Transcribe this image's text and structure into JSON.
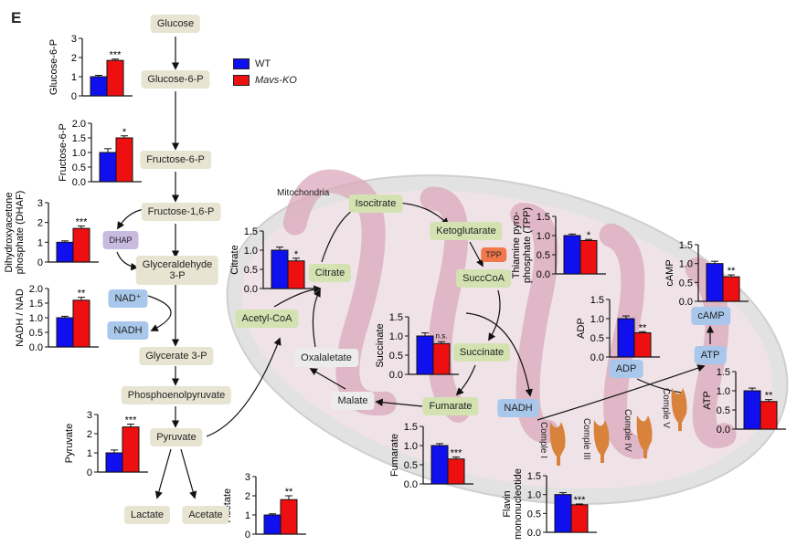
{
  "panel_label": "E",
  "legend": [
    {
      "label": "WT",
      "color": "#1010ee"
    },
    {
      "label": "Mavs-KO",
      "color": "#ee1010"
    }
  ],
  "colors": {
    "wt": "#1010ee",
    "ko": "#ee1010"
  },
  "nodes": {
    "glucose": "Glucose",
    "glucose6p": "Glucose-6-P",
    "fructose6p": "Fructose-6-P",
    "fructose16p": "Fructose-1,6-P",
    "dhap": "DHAP",
    "g3p_1": "Glyceraldehyde",
    "g3p_2": "3-P",
    "nad": "NAD⁺",
    "nadh": "NADH",
    "glycerate": "Glycerate 3-P",
    "pep": "Phosphoenolpyruvate",
    "pyruvate": "Pyruvate",
    "lactate": "Lactate",
    "acetate": "Acetate",
    "mitochondria": "Mitochondria",
    "acetylcoa": "Acetyl-CoA",
    "citrate": "Citrate",
    "isocitrate": "Isocitrate",
    "ketoglutarate": "Ketoglutarate",
    "tpp": "TPP",
    "succcoa": "SuccCoA",
    "succinate": "Succinate",
    "fumarate": "Fumarate",
    "malate": "Malate",
    "oxalaletate": "Oxalaletate",
    "mito_nadh": "NADH",
    "adp": "ADP",
    "atp": "ATP",
    "camp": "cAMP",
    "complex1": "Comple I",
    "complex3": "Comple III",
    "complex4": "Comple IV",
    "complex5": "Comple V"
  },
  "chart_data": [
    {
      "type": "bar",
      "ylabel": [
        "Glucose-6-P"
      ],
      "categories": [
        "WT",
        "Mavs-KO"
      ],
      "values": [
        1.0,
        1.85
      ],
      "errors": [
        0.07,
        0.07
      ],
      "ylim": [
        0,
        3
      ],
      "ticks": [
        "0",
        "1",
        "2",
        "3"
      ],
      "sig": "***"
    },
    {
      "type": "bar",
      "ylabel": [
        "Fructose-6-P"
      ],
      "categories": [
        "WT",
        "Mavs-KO"
      ],
      "values": [
        1.0,
        1.5
      ],
      "errors": [
        0.13,
        0.07
      ],
      "ylim": [
        0,
        2
      ],
      "ticks": [
        "0.0",
        "0.5",
        "1.0",
        "1.5",
        "2.0"
      ],
      "sig": "*"
    },
    {
      "type": "bar",
      "ylabel": [
        "Dihydroxyacetone",
        "phosphate (DHAF)"
      ],
      "categories": [
        "WT",
        "Mavs-KO"
      ],
      "values": [
        1.0,
        1.7
      ],
      "errors": [
        0.07,
        0.12
      ],
      "ylim": [
        0,
        3
      ],
      "ticks": [
        "0",
        "1",
        "2",
        "3"
      ],
      "sig": "***"
    },
    {
      "type": "bar",
      "ylabel": [
        "NADH / NAD"
      ],
      "categories": [
        "WT",
        "Mavs-KO"
      ],
      "values": [
        1.0,
        1.6
      ],
      "errors": [
        0.05,
        0.1
      ],
      "ylim": [
        0,
        2
      ],
      "ticks": [
        "0.0",
        "0.5",
        "1.0",
        "1.5",
        "2.0"
      ],
      "sig": "**"
    },
    {
      "type": "bar",
      "ylabel": [
        "Pyruvate"
      ],
      "categories": [
        "WT",
        "Mavs-KO"
      ],
      "values": [
        1.0,
        2.35
      ],
      "errors": [
        0.15,
        0.15
      ],
      "ylim": [
        0,
        3
      ],
      "ticks": [
        "0",
        "1",
        "2",
        "3"
      ],
      "sig": "***"
    },
    {
      "type": "bar",
      "ylabel": [
        "Acetate"
      ],
      "categories": [
        "WT",
        "Mavs-KO"
      ],
      "values": [
        1.0,
        1.8
      ],
      "errors": [
        0.06,
        0.2
      ],
      "ylim": [
        0,
        3
      ],
      "ticks": [
        "0",
        "1",
        "2",
        "3"
      ],
      "sig": "**"
    },
    {
      "type": "bar",
      "ylabel": [
        "Citrate"
      ],
      "categories": [
        "WT",
        "Mavs-KO"
      ],
      "values": [
        1.0,
        0.72
      ],
      "errors": [
        0.08,
        0.07
      ],
      "ylim": [
        0,
        1.5
      ],
      "ticks": [
        "0.0",
        "0.5",
        "1.0",
        "1.5"
      ],
      "sig": "*"
    },
    {
      "type": "bar",
      "ylabel": [
        "Succinate"
      ],
      "categories": [
        "WT",
        "Mavs-KO"
      ],
      "values": [
        1.0,
        0.8
      ],
      "errors": [
        0.08,
        0.05
      ],
      "ylim": [
        0,
        1.5
      ],
      "ticks": [
        "0.0",
        "0.5",
        "1.0",
        "1.5"
      ],
      "sig": "n.s."
    },
    {
      "type": "bar",
      "ylabel": [
        "Thiamine pyro-",
        "phosphate (TPP)"
      ],
      "categories": [
        "WT",
        "Mavs-KO"
      ],
      "values": [
        1.0,
        0.87
      ],
      "errors": [
        0.04,
        0.03
      ],
      "ylim": [
        0,
        1.5
      ],
      "ticks": [
        "0.0",
        "0.5",
        "1.0",
        "1.5"
      ],
      "sig": "*"
    },
    {
      "type": "bar",
      "ylabel": [
        "cAMP"
      ],
      "categories": [
        "WT",
        "Mavs-KO"
      ],
      "values": [
        1.0,
        0.65
      ],
      "errors": [
        0.06,
        0.05
      ],
      "ylim": [
        0,
        1.5
      ],
      "ticks": [
        "0.0",
        "0.5",
        "1.0",
        "1.5"
      ],
      "sig": "**"
    },
    {
      "type": "bar",
      "ylabel": [
        "ADP"
      ],
      "categories": [
        "WT",
        "Mavs-KO"
      ],
      "values": [
        1.0,
        0.63
      ],
      "errors": [
        0.07,
        0.03
      ],
      "ylim": [
        0,
        1.5
      ],
      "ticks": [
        "0.0",
        "0.5",
        "1.0",
        "1.5"
      ],
      "sig": "**"
    },
    {
      "type": "bar",
      "ylabel": [
        "ATP"
      ],
      "categories": [
        "WT",
        "Mavs-KO"
      ],
      "values": [
        1.0,
        0.72
      ],
      "errors": [
        0.07,
        0.05
      ],
      "ylim": [
        0,
        1.5
      ],
      "ticks": [
        "0.0",
        "0.5",
        "1.0",
        "1.5"
      ],
      "sig": "**"
    },
    {
      "type": "bar",
      "ylabel": [
        "Fumarate"
      ],
      "categories": [
        "WT",
        "Mavs-KO"
      ],
      "values": [
        1.0,
        0.65
      ],
      "errors": [
        0.05,
        0.05
      ],
      "ylim": [
        0,
        1.5
      ],
      "ticks": [
        "0.0",
        "0.5",
        "1.0",
        "1.5"
      ],
      "sig": "***"
    },
    {
      "type": "bar",
      "ylabel": [
        "Flavin",
        "mononucleotide"
      ],
      "categories": [
        "WT",
        "Mavs-KO"
      ],
      "values": [
        1.0,
        0.73
      ],
      "errors": [
        0.05,
        0.02
      ],
      "ylim": [
        0,
        1.5
      ],
      "ticks": [
        "0.0",
        "0.5",
        "1.0",
        "1.5"
      ],
      "sig": "***"
    }
  ]
}
